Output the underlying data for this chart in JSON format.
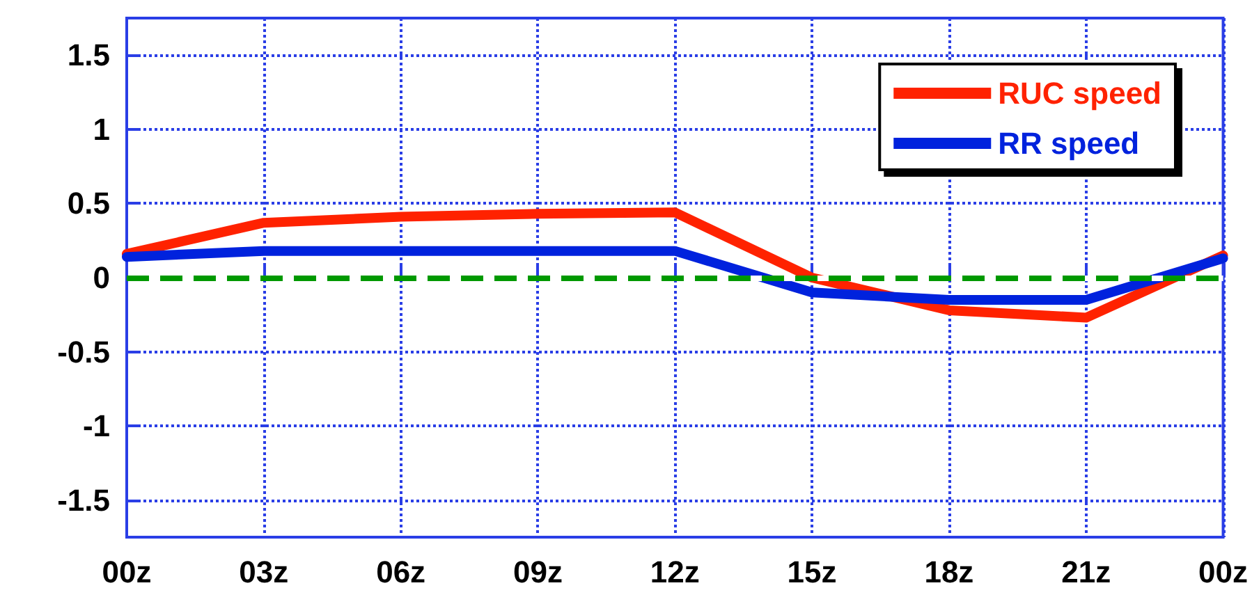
{
  "chart_data": {
    "type": "line",
    "categories": [
      "00z",
      "03z",
      "06z",
      "09z",
      "12z",
      "15z",
      "18z",
      "21z",
      "00z"
    ],
    "series": [
      {
        "name": "RUC speed",
        "color": "#ff2200",
        "values": [
          0.16,
          0.37,
          0.41,
          0.43,
          0.44,
          0.0,
          -0.22,
          -0.27,
          0.15
        ]
      },
      {
        "name": "RR speed",
        "color": "#0022dd",
        "values": [
          0.14,
          0.18,
          0.18,
          0.18,
          0.18,
          -0.1,
          -0.15,
          -0.15,
          0.13
        ]
      }
    ],
    "ylim": [
      -1.75,
      1.75
    ],
    "yticks": [
      -1.5,
      -1,
      -0.5,
      0,
      0.5,
      1,
      1.5
    ],
    "ref_lines": [
      {
        "axis": "y",
        "value": 0,
        "color": "#009900",
        "line_style": "dashed"
      }
    ],
    "grid": true,
    "legend": "top right",
    "marker": "none",
    "line_style": "solid"
  }
}
